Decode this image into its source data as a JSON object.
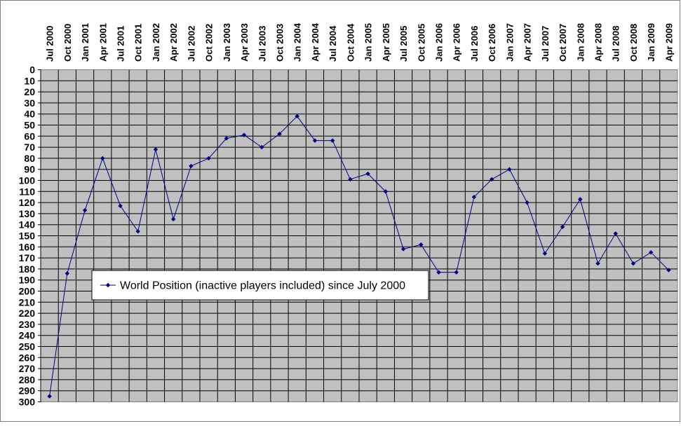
{
  "chart_data": {
    "type": "line",
    "title": "",
    "xlabel": "",
    "ylabel": "",
    "y_axis_reversed": true,
    "ylim": [
      0,
      300
    ],
    "y_ticks": [
      0,
      10,
      20,
      30,
      40,
      50,
      60,
      70,
      80,
      90,
      100,
      110,
      120,
      130,
      140,
      150,
      160,
      170,
      180,
      190,
      200,
      210,
      220,
      230,
      240,
      250,
      260,
      270,
      280,
      290,
      300
    ],
    "grid": true,
    "legend_position": "middle-left",
    "colors": {
      "plot_background": "#c0c0c0",
      "line": "#000080",
      "gridline": "#000000",
      "frame": "#808080"
    },
    "categories": [
      "Jul 2000",
      "Oct 2000",
      "Jan 2001",
      "Apr 2001",
      "Jul 2001",
      "Oct 2001",
      "Jan 2002",
      "Apr 2002",
      "Jul 2002",
      "Oct 2002",
      "Jan 2003",
      "Apr 2003",
      "Jul 2003",
      "Oct 2003",
      "Jan 2004",
      "Apr 2004",
      "Jul 2004",
      "Oct 2004",
      "Jan 2005",
      "Apr 2005",
      "Jul 2005",
      "Oct 2005",
      "Jan 2006",
      "Apr 2006",
      "Jul 2006",
      "Oct 2006",
      "Jan 2007",
      "Apr 2007",
      "Jul 2007",
      "Oct 2007",
      "Jan 2008",
      "Apr 2008",
      "Jul 2008",
      "Oct 2008",
      "Jan 2009",
      "Apr 2009"
    ],
    "series": [
      {
        "name": "World Position (inactive players included) since July 2000",
        "values": [
          295,
          184,
          127,
          80,
          123,
          146,
          72,
          135,
          87,
          80,
          62,
          59,
          70,
          58,
          42,
          64,
          64,
          99,
          94,
          110,
          162,
          158,
          183,
          183,
          115,
          99,
          90,
          120,
          166,
          142,
          117,
          175,
          148,
          175,
          165,
          181
        ]
      }
    ]
  }
}
